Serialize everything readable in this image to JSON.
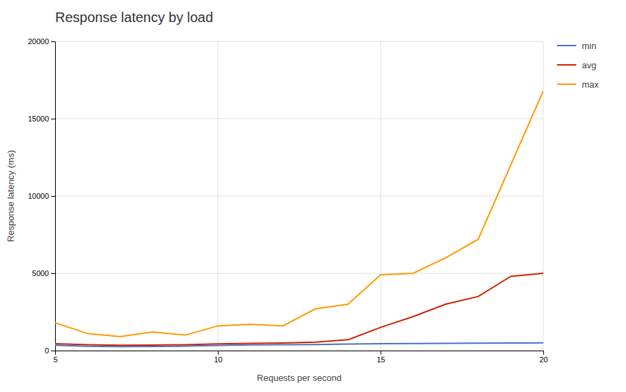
{
  "chart_data": {
    "type": "line",
    "title": "Response latency by load",
    "xlabel": "Requests per second",
    "ylabel": "Response latency (ms)",
    "x": [
      5,
      6,
      7,
      8,
      9,
      10,
      11,
      12,
      13,
      14,
      15,
      16,
      17,
      18,
      19,
      20
    ],
    "series": [
      {
        "name": "min",
        "color": "#4472c4",
        "values": [
          350,
          280,
          260,
          270,
          290,
          340,
          370,
          380,
          390,
          420,
          450,
          460,
          470,
          480,
          490,
          500
        ]
      },
      {
        "name": "avg",
        "color": "#cc2200",
        "values": [
          450,
          380,
          350,
          360,
          380,
          430,
          470,
          490,
          550,
          700,
          1500,
          2200,
          3000,
          3500,
          4800,
          5000
        ]
      },
      {
        "name": "max",
        "color": "#ff9900",
        "values": [
          1800,
          1100,
          900,
          1200,
          1000,
          1600,
          1700,
          1600,
          2700,
          3000,
          4900,
          5000,
          6000,
          7200,
          12000,
          16800
        ]
      }
    ],
    "xlim": [
      5,
      20
    ],
    "ylim": [
      0,
      20000
    ],
    "xticks": [
      5,
      10,
      15,
      20
    ],
    "yticks": [
      0,
      5000,
      10000,
      15000,
      20000
    ],
    "grid": true,
    "legend": "right"
  }
}
